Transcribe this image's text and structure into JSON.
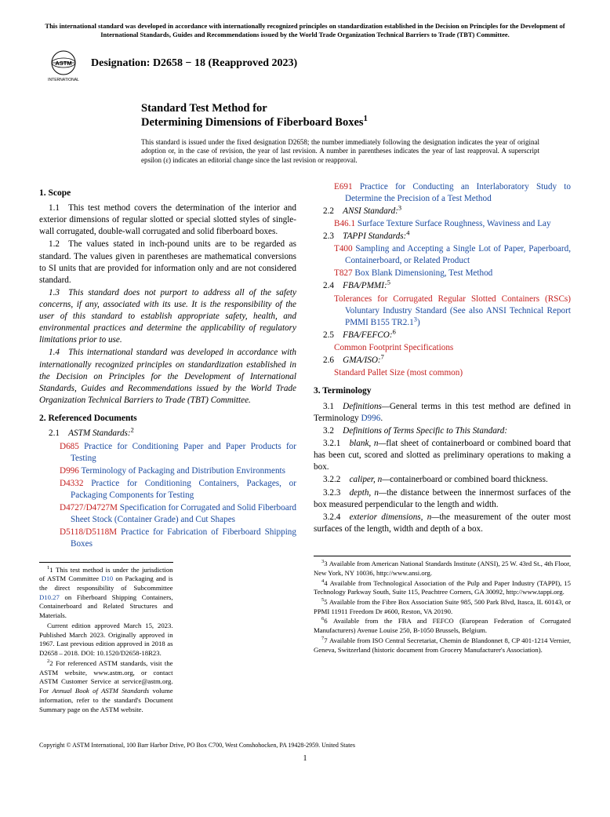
{
  "header_note": "This international standard was developed in accordance with internationally recognized principles on standardization established in the Decision on Principles for the Development of International Standards, Guides and Recommendations issued by the World Trade Organization Technical Barriers to Trade (TBT) Committee.",
  "designation_label": "Designation: D2658 − 18 (Reapproved 2023)",
  "logo_text_top": "ASTM",
  "logo_text_bot": "INTERNATIONAL",
  "title_prefix": "Standard Test Method for",
  "title_main": "Determining Dimensions of Fiberboard Boxes",
  "title_sup": "1",
  "issuance_note": "This standard is issued under the fixed designation D2658; the number immediately following the designation indicates the year of original adoption or, in the case of revision, the year of last revision. A number in parentheses indicates the year of last reapproval. A superscript epsilon (ε) indicates an editorial change since the last revision or reapproval.",
  "s1_head": "1. Scope",
  "s1_1": "1.1 This test method covers the determination of the interior and exterior dimensions of regular slotted or special slotted styles of single-wall corrugated, double-wall corrugated and solid fiberboard boxes.",
  "s1_2": "1.2 The values stated in inch-pound units are to be regarded as standard. The values given in parentheses are mathematical conversions to SI units that are provided for information only and are not considered standard.",
  "s1_3": "1.3 This standard does not purport to address all of the safety concerns, if any, associated with its use. It is the responsibility of the user of this standard to establish appropriate safety, health, and environmental practices and determine the applicability of regulatory limitations prior to use.",
  "s1_4": "1.4 This international standard was developed in accordance with internationally recognized principles on standardization established in the Decision on Principles for the Development of International Standards, Guides and Recommendations issued by the World Trade Organization Technical Barriers to Trade (TBT) Committee.",
  "s2_head": "2. Referenced Documents",
  "s2_1": "2.1 ",
  "s2_1_label": "ASTM Standards:",
  "s2_1_sup": "2",
  "refs_astm": [
    {
      "code": "D685",
      "title": "Practice for Conditioning Paper and Paper Products for Testing"
    },
    {
      "code": "D996",
      "title": "Terminology of Packaging and Distribution Environments"
    },
    {
      "code": "D4332",
      "title": "Practice for Conditioning Containers, Packages, or Packaging Components for Testing"
    },
    {
      "code": "D4727/D4727M",
      "title": "Specification for Corrugated and Solid Fiberboard Sheet Stock (Container Grade) and Cut Shapes"
    },
    {
      "code": "D5118/D5118M",
      "title": "Practice for Fabrication of Fiberboard Shipping Boxes"
    }
  ],
  "ref_e691_code": "E691",
  "ref_e691_title": "Practice for Conducting an Interlaboratory Study to Determine the Precision of a Test Method",
  "s2_2": "2.2 ",
  "s2_2_label": "ANSI Standard:",
  "s2_2_sup": "3",
  "ref_b461_code": "B46.1",
  "ref_b461_title": "Surface Texture Surface Roughness, Waviness and Lay",
  "s2_3": "2.3 ",
  "s2_3_label": "TAPPI Standards:",
  "s2_3_sup": "4",
  "ref_t400_code": "T400",
  "ref_t400_title": "Sampling and Accepting a Single Lot of Paper, Paperboard, Containerboard, or Related Product",
  "ref_t827_code": "T827",
  "ref_t827_title": "Box Blank Dimensioning, Test Method",
  "s2_4": "2.4 ",
  "s2_4_label": "FBA/PMMI:",
  "s2_4_sup": "5",
  "ref_rsc_code": "Tolerances for Corrugated Regular Slotted Containers (RSCs)",
  "ref_rsc_title_a": "Voluntary Industry Standard (See also ANSI Technical Report PMMI B155 TR2.1",
  "ref_rsc_sup": "3",
  "ref_rsc_title_b": ")",
  "s2_5": "2.5 ",
  "s2_5_label": "FBA/FEFCO:",
  "s2_5_sup": "6",
  "ref_cfs": "Common Footprint Specifications",
  "s2_6": "2.6 ",
  "s2_6_label": "GMA/ISO:",
  "s2_6_sup": "7",
  "ref_pallet": "Standard Pallet Size (most common)",
  "s3_head": "3. Terminology",
  "s3_1_a": "3.1 ",
  "s3_1_b": "Definitions—",
  "s3_1_c": "General terms in this test method are defined in Terminology ",
  "s3_1_link": "D996",
  "s3_1_d": ".",
  "s3_2": "3.2 ",
  "s3_2_label": "Definitions of Terms Specific to This Standard:",
  "s3_2_1_a": "3.2.1 ",
  "s3_2_1_term": "blank, n—",
  "s3_2_1_def": "flat sheet of containerboard or combined board that has been cut, scored and slotted as preliminary operations to making a box.",
  "s3_2_2_a": "3.2.2 ",
  "s3_2_2_term": "caliper, n—",
  "s3_2_2_def": "containerboard or combined board thickness.",
  "s3_2_3_a": "3.2.3 ",
  "s3_2_3_term": "depth, n—",
  "s3_2_3_def": "the distance between the innermost surfaces of the box measured perpendicular to the length and width.",
  "s3_2_4_a": "3.2.4 ",
  "s3_2_4_term": "exterior dimensions, n—",
  "s3_2_4_def": "the measurement of the outer most surfaces of the length, width and depth of a box.",
  "fn1_a": "1 This test method is under the jurisdiction of ASTM Committee ",
  "fn1_link1": "D10",
  "fn1_b": " on Packaging and is the direct responsibility of Subcommittee ",
  "fn1_link2": "D10.27",
  "fn1_c": " on Fiberboard Shipping Containers, Containerboard and Related Structures and Materials.",
  "fn1_d": "Current edition approved March 15, 2023. Published March 2023. Originally approved in 1967. Last previous edition approved in 2018 as D2658 – 2018. DOI: 10.1520/D2658-18R23.",
  "fn2_a": "2 For referenced ASTM standards, visit the ASTM website, www.astm.org, or contact ASTM Customer Service at service@astm.org. For ",
  "fn2_b": "Annual Book of ASTM Standards",
  "fn2_c": " volume information, refer to the standard's Document Summary page on the ASTM website.",
  "fn3": "3 Available from American National Standards Institute (ANSI), 25 W. 43rd St., 4th Floor, New York, NY 10036, http://www.ansi.org.",
  "fn4": "4 Available from Technological Association of the Pulp and Paper Industry (TAPPI), 15 Technology Parkway South, Suite 115, Peachtree Corners, GA 30092, http://www.tappi.org.",
  "fn5": "5 Available from the Fibre Box Association Suite 985, 500 Park Blvd, Itasca, IL 60143, or PPMI 11911 Freedom Dr #600, Reston, VA 20190.",
  "fn6": "6 Available from the FBA and FEFCO (European Federation of Corrugated Manufacturers) Avenue Louise 250, B-1050 Brussels, Belgium.",
  "fn7": "7 Available from ISO Central Secretariat, Chemin de Blandonnet 8, CP 401-1214 Vernier, Geneva, Switzerland (historic document from Grocery Manufacturer's Association).",
  "copyright": "Copyright © ASTM International, 100 Barr Harbor Drive, PO Box C700, West Conshohocken, PA 19428-2959. United States",
  "pagenum": "1"
}
